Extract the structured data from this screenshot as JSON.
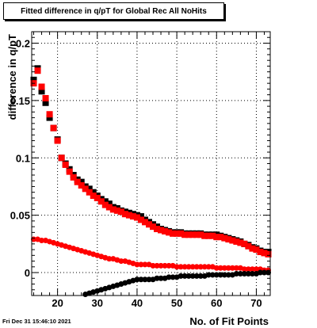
{
  "title": "Fitted difference in q/pT for Global Rec All NoHits",
  "timestamp": "Fri Dec 31 15:46:10 2021",
  "chart_data": {
    "type": "scatter",
    "title": "Fitted difference in q/pT for Global Rec All NoHits",
    "xlabel": "No. of Fit Points",
    "ylabel": "difference in q/pT",
    "xlim": [
      13.5,
      73.5
    ],
    "ylim": [
      -0.02,
      0.21
    ],
    "xticks": [
      20,
      30,
      40,
      50,
      60,
      70
    ],
    "xtick_labels": [
      "20",
      "30",
      "40",
      "50",
      "60",
      "70"
    ],
    "yticks": [
      0,
      0.05,
      0.1,
      0.15,
      0.2
    ],
    "ytick_labels": [
      "0",
      "0.05",
      "0.1",
      "0.15",
      "0.2"
    ],
    "grid": true,
    "series": [
      {
        "color": "#000000",
        "marker": "square",
        "x": [
          14,
          15,
          16,
          17,
          18,
          19,
          20,
          21,
          22,
          23,
          24,
          25,
          26,
          27,
          28,
          29,
          30,
          31,
          32,
          33,
          34,
          35,
          36,
          37,
          38,
          39,
          40,
          41,
          42,
          43,
          44,
          45,
          46,
          47,
          48,
          49,
          50,
          51,
          52,
          53,
          54,
          55,
          56,
          57,
          58,
          59,
          60,
          61,
          62,
          63,
          64,
          65,
          66,
          67,
          68,
          69,
          70,
          71,
          72,
          73
        ],
        "y": [
          0.168,
          0.178,
          0.158,
          0.148,
          0.135,
          0.126,
          0.116,
          0.1,
          0.095,
          0.09,
          0.085,
          0.081,
          0.079,
          0.075,
          0.073,
          0.07,
          0.067,
          0.064,
          0.062,
          0.06,
          0.057,
          0.056,
          0.054,
          0.053,
          0.052,
          0.051,
          0.05,
          0.049,
          0.046,
          0.044,
          0.042,
          0.04,
          0.038,
          0.037,
          0.036,
          0.035,
          0.035,
          0.035,
          0.034,
          0.034,
          0.034,
          0.034,
          0.034,
          0.033,
          0.033,
          0.033,
          0.033,
          0.032,
          0.031,
          0.03,
          0.029,
          0.028,
          0.027,
          0.025,
          0.024,
          0.022,
          0.021,
          0.019,
          0.018,
          0.018
        ]
      },
      {
        "color": "#ff0000",
        "marker": "square",
        "x": [
          14,
          15,
          16,
          17,
          18,
          19,
          20,
          21,
          22,
          23,
          24,
          25,
          26,
          27,
          28,
          29,
          30,
          31,
          32,
          33,
          34,
          35,
          36,
          37,
          38,
          39,
          40,
          41,
          42,
          43,
          44,
          45,
          46,
          47,
          48,
          49,
          50,
          51,
          52,
          53,
          54,
          55,
          56,
          57,
          58,
          59,
          60,
          61,
          62,
          63,
          64,
          65,
          66,
          67,
          68,
          69,
          70,
          71,
          72,
          73
        ],
        "y": [
          0.165,
          0.176,
          0.162,
          0.152,
          0.138,
          0.126,
          0.115,
          0.1,
          0.094,
          0.088,
          0.083,
          0.079,
          0.076,
          0.073,
          0.07,
          0.067,
          0.065,
          0.062,
          0.059,
          0.057,
          0.055,
          0.054,
          0.053,
          0.051,
          0.05,
          0.049,
          0.048,
          0.046,
          0.044,
          0.042,
          0.04,
          0.038,
          0.037,
          0.036,
          0.035,
          0.034,
          0.034,
          0.034,
          0.033,
          0.033,
          0.033,
          0.033,
          0.033,
          0.032,
          0.032,
          0.032,
          0.031,
          0.031,
          0.03,
          0.029,
          0.028,
          0.027,
          0.026,
          0.025,
          0.023,
          0.021,
          0.02,
          0.018,
          0.017,
          0.016
        ]
      },
      {
        "color": "#ff0000",
        "marker": "circle",
        "x": [
          14,
          15,
          16,
          17,
          18,
          19,
          20,
          21,
          22,
          23,
          24,
          25,
          26,
          27,
          28,
          29,
          30,
          31,
          32,
          33,
          34,
          35,
          36,
          37,
          38,
          39,
          40,
          41,
          42,
          43,
          44,
          45,
          46,
          47,
          48,
          49,
          50,
          51,
          52,
          53,
          54,
          55,
          56,
          57,
          58,
          59,
          60,
          61,
          62,
          63,
          64,
          65,
          66,
          67,
          68,
          69,
          70,
          71,
          72,
          73
        ],
        "y": [
          0.029,
          0.029,
          0.028,
          0.028,
          0.027,
          0.026,
          0.025,
          0.024,
          0.023,
          0.022,
          0.021,
          0.02,
          0.019,
          0.018,
          0.017,
          0.016,
          0.015,
          0.014,
          0.013,
          0.012,
          0.012,
          0.011,
          0.01,
          0.01,
          0.009,
          0.008,
          0.007,
          0.007,
          0.007,
          0.007,
          0.006,
          0.006,
          0.006,
          0.006,
          0.006,
          0.006,
          0.005,
          0.005,
          0.005,
          0.005,
          0.005,
          0.005,
          0.005,
          0.005,
          0.005,
          0.005,
          0.004,
          0.004,
          0.004,
          0.004,
          0.004,
          0.004,
          0.004,
          0.003,
          0.003,
          0.003,
          0.003,
          0.003,
          0.002,
          0.002
        ]
      },
      {
        "color": "#000000",
        "marker": "circle",
        "x": [
          27,
          28,
          29,
          30,
          31,
          32,
          33,
          34,
          35,
          36,
          37,
          38,
          39,
          40,
          41,
          42,
          43,
          44,
          45,
          46,
          47,
          48,
          49,
          50,
          51,
          52,
          53,
          54,
          55,
          56,
          57,
          58,
          59,
          60,
          61,
          62,
          63,
          64,
          65,
          66,
          67,
          68,
          69,
          70,
          71,
          72,
          73
        ],
        "y": [
          -0.019,
          -0.018,
          -0.017,
          -0.016,
          -0.015,
          -0.014,
          -0.013,
          -0.012,
          -0.011,
          -0.01,
          -0.009,
          -0.008,
          -0.007,
          -0.006,
          -0.006,
          -0.006,
          -0.006,
          -0.006,
          -0.005,
          -0.005,
          -0.005,
          -0.004,
          -0.004,
          -0.004,
          -0.003,
          -0.003,
          -0.003,
          -0.003,
          -0.003,
          -0.003,
          -0.003,
          -0.002,
          -0.002,
          -0.002,
          -0.002,
          -0.002,
          -0.002,
          -0.002,
          -0.001,
          -0.001,
          -0.001,
          -0.001,
          -0.001,
          -0.001,
          0.0,
          0.0,
          0.0
        ]
      }
    ]
  }
}
